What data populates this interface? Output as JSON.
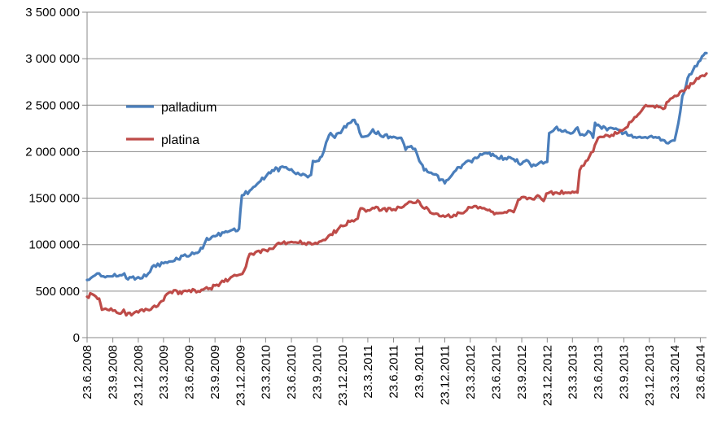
{
  "chart_data": {
    "type": "line",
    "title": "",
    "xlabel": "",
    "ylabel": "",
    "ylim": [
      0,
      3500000
    ],
    "grid": "horizontal",
    "legend_position": "upper-left",
    "y_ticks": [
      {
        "value": 0,
        "label": "0"
      },
      {
        "value": 500000,
        "label": "500 000"
      },
      {
        "value": 1000000,
        "label": "1000 000"
      },
      {
        "value": 1500000,
        "label": "1500 000"
      },
      {
        "value": 2000000,
        "label": "2 000 000"
      },
      {
        "value": 2500000,
        "label": "2 500 000"
      },
      {
        "value": 3000000,
        "label": "3 000 000"
      },
      {
        "value": 3500000,
        "label": "3 500 000"
      }
    ],
    "x_ticks": [
      "23.6.2008",
      "23.9.2008",
      "23.12.2008",
      "23.3.2009",
      "23.6.2009",
      "23.9.2009",
      "23.12.2009",
      "23.3.2010",
      "23.6.2010",
      "23.9.2010",
      "23.12.2010",
      "23.3.2011",
      "23.6.2011",
      "23.9.2011",
      "23.12.2011",
      "23.3.2012",
      "23.6.2012",
      "23.9.2012",
      "23.12.2012",
      "23.3.2013",
      "23.6.2013",
      "23.9.2013",
      "23.12.2013",
      "23.3.2014",
      "23.6.2014"
    ],
    "x_range": [
      "2008-06-23",
      "2014-07-15"
    ],
    "series": [
      {
        "name": "palladium",
        "color": "#4a7ebb",
        "points": [
          [
            "2008-06-23",
            620000
          ],
          [
            "2008-07-15",
            660000
          ],
          [
            "2008-08-05",
            690000
          ],
          [
            "2008-08-20",
            660000
          ],
          [
            "2008-09-23",
            660000
          ],
          [
            "2008-10-25",
            670000
          ],
          [
            "2008-11-03",
            690000
          ],
          [
            "2008-11-10",
            640000
          ],
          [
            "2008-12-23",
            650000
          ],
          [
            "2009-01-20",
            660000
          ],
          [
            "2009-02-10",
            760000
          ],
          [
            "2009-03-23",
            800000
          ],
          [
            "2009-04-25",
            820000
          ],
          [
            "2009-06-01",
            880000
          ],
          [
            "2009-07-10",
            900000
          ],
          [
            "2009-08-10",
            960000
          ],
          [
            "2009-08-25",
            1070000
          ],
          [
            "2009-09-23",
            1090000
          ],
          [
            "2009-10-25",
            1130000
          ],
          [
            "2009-11-25",
            1160000
          ],
          [
            "2009-12-18",
            1170000
          ],
          [
            "2009-12-28",
            1530000
          ],
          [
            "2010-01-25",
            1580000
          ],
          [
            "2010-02-20",
            1650000
          ],
          [
            "2010-03-23",
            1730000
          ],
          [
            "2010-04-15",
            1800000
          ],
          [
            "2010-04-28",
            1830000
          ],
          [
            "2010-05-08",
            1790000
          ],
          [
            "2010-05-22",
            1840000
          ],
          [
            "2010-06-23",
            1810000
          ],
          [
            "2010-07-10",
            1760000
          ],
          [
            "2010-08-15",
            1740000
          ],
          [
            "2010-09-01",
            1750000
          ],
          [
            "2010-09-08",
            1900000
          ],
          [
            "2010-09-23",
            1900000
          ],
          [
            "2010-10-10",
            1950000
          ],
          [
            "2010-10-25",
            2100000
          ],
          [
            "2010-11-10",
            2200000
          ],
          [
            "2010-11-25",
            2150000
          ],
          [
            "2010-12-23",
            2240000
          ],
          [
            "2011-01-10",
            2300000
          ],
          [
            "2011-01-28",
            2340000
          ],
          [
            "2011-02-15",
            2290000
          ],
          [
            "2011-03-01",
            2160000
          ],
          [
            "2011-03-23",
            2170000
          ],
          [
            "2011-04-10",
            2240000
          ],
          [
            "2011-05-05",
            2180000
          ],
          [
            "2011-06-23",
            2160000
          ],
          [
            "2011-07-20",
            2150000
          ],
          [
            "2011-08-05",
            2020000
          ],
          [
            "2011-08-25",
            2060000
          ],
          [
            "2011-09-08",
            2030000
          ],
          [
            "2011-09-23",
            1900000
          ],
          [
            "2011-10-10",
            1800000
          ],
          [
            "2011-11-10",
            1760000
          ],
          [
            "2011-12-10",
            1700000
          ],
          [
            "2011-12-23",
            1660000
          ],
          [
            "2012-01-10",
            1720000
          ],
          [
            "2012-02-01",
            1800000
          ],
          [
            "2012-03-01",
            1870000
          ],
          [
            "2012-03-23",
            1900000
          ],
          [
            "2012-04-15",
            1930000
          ],
          [
            "2012-05-10",
            1980000
          ],
          [
            "2012-05-25",
            1980000
          ],
          [
            "2012-06-23",
            1950000
          ],
          [
            "2012-07-25",
            1930000
          ],
          [
            "2012-08-25",
            1920000
          ],
          [
            "2012-09-23",
            1870000
          ],
          [
            "2012-10-10",
            1910000
          ],
          [
            "2012-10-28",
            1840000
          ],
          [
            "2012-11-25",
            1880000
          ],
          [
            "2012-12-23",
            1890000
          ],
          [
            "2012-12-30",
            2200000
          ],
          [
            "2013-01-20",
            2250000
          ],
          [
            "2013-02-25",
            2230000
          ],
          [
            "2013-03-23",
            2200000
          ],
          [
            "2013-04-10",
            2260000
          ],
          [
            "2013-04-20",
            2180000
          ],
          [
            "2013-05-25",
            2210000
          ],
          [
            "2013-06-05",
            2150000
          ],
          [
            "2013-06-12",
            2310000
          ],
          [
            "2013-06-23",
            2290000
          ],
          [
            "2013-07-25",
            2230000
          ],
          [
            "2013-08-25",
            2250000
          ],
          [
            "2013-09-23",
            2200000
          ],
          [
            "2013-10-20",
            2180000
          ],
          [
            "2013-11-25",
            2150000
          ],
          [
            "2013-12-23",
            2160000
          ],
          [
            "2014-01-20",
            2150000
          ],
          [
            "2014-02-15",
            2120000
          ],
          [
            "2014-03-01",
            2090000
          ],
          [
            "2014-03-23",
            2120000
          ],
          [
            "2014-04-05",
            2300000
          ],
          [
            "2014-04-20",
            2600000
          ],
          [
            "2014-05-15",
            2830000
          ],
          [
            "2014-06-23",
            2980000
          ],
          [
            "2014-07-05",
            3040000
          ],
          [
            "2014-07-15",
            3060000
          ]
        ]
      },
      {
        "name": "platina",
        "color": "#be4b48",
        "points": [
          [
            "2008-06-23",
            440000
          ],
          [
            "2008-07-10",
            470000
          ],
          [
            "2008-07-25",
            440000
          ],
          [
            "2008-08-05",
            420000
          ],
          [
            "2008-08-15",
            300000
          ],
          [
            "2008-09-23",
            290000
          ],
          [
            "2008-10-15",
            260000
          ],
          [
            "2008-11-01",
            300000
          ],
          [
            "2008-11-10",
            240000
          ],
          [
            "2008-12-23",
            270000
          ],
          [
            "2009-01-25",
            300000
          ],
          [
            "2009-02-25",
            330000
          ],
          [
            "2009-03-15",
            390000
          ],
          [
            "2009-03-23",
            400000
          ],
          [
            "2009-04-10",
            480000
          ],
          [
            "2009-05-05",
            510000
          ],
          [
            "2009-05-15",
            470000
          ],
          [
            "2009-06-01",
            500000
          ],
          [
            "2009-06-23",
            510000
          ],
          [
            "2009-07-25",
            500000
          ],
          [
            "2009-09-05",
            530000
          ],
          [
            "2009-09-23",
            560000
          ],
          [
            "2009-10-25",
            600000
          ],
          [
            "2009-11-25",
            660000
          ],
          [
            "2009-12-23",
            680000
          ],
          [
            "2010-01-05",
            720000
          ],
          [
            "2010-01-25",
            900000
          ],
          [
            "2010-02-15",
            920000
          ],
          [
            "2010-03-23",
            940000
          ],
          [
            "2010-04-25",
            980000
          ],
          [
            "2010-05-15",
            1010000
          ],
          [
            "2010-06-23",
            1030000
          ],
          [
            "2010-07-15",
            1020000
          ],
          [
            "2010-07-25",
            1040000
          ],
          [
            "2010-08-15",
            1000000
          ],
          [
            "2010-09-23",
            1010000
          ],
          [
            "2010-10-15",
            1050000
          ],
          [
            "2010-11-10",
            1110000
          ],
          [
            "2010-12-05",
            1160000
          ],
          [
            "2010-12-23",
            1200000
          ],
          [
            "2011-01-25",
            1260000
          ],
          [
            "2011-02-15",
            1280000
          ],
          [
            "2011-02-25",
            1390000
          ],
          [
            "2011-03-23",
            1370000
          ],
          [
            "2011-04-15",
            1390000
          ],
          [
            "2011-05-10",
            1370000
          ],
          [
            "2011-06-23",
            1380000
          ],
          [
            "2011-07-15",
            1400000
          ],
          [
            "2011-08-10",
            1440000
          ],
          [
            "2011-08-25",
            1460000
          ],
          [
            "2011-09-23",
            1460000
          ],
          [
            "2011-10-05",
            1400000
          ],
          [
            "2011-10-25",
            1380000
          ],
          [
            "2011-11-15",
            1330000
          ],
          [
            "2011-12-23",
            1300000
          ],
          [
            "2012-01-25",
            1320000
          ],
          [
            "2012-02-15",
            1340000
          ],
          [
            "2012-03-23",
            1400000
          ],
          [
            "2012-04-20",
            1390000
          ],
          [
            "2012-05-25",
            1370000
          ],
          [
            "2012-06-23",
            1340000
          ],
          [
            "2012-07-25",
            1350000
          ],
          [
            "2012-08-25",
            1350000
          ],
          [
            "2012-09-10",
            1480000
          ],
          [
            "2012-09-23",
            1510000
          ],
          [
            "2012-10-25",
            1500000
          ],
          [
            "2012-11-25",
            1520000
          ],
          [
            "2012-12-10",
            1470000
          ],
          [
            "2012-12-20",
            1550000
          ],
          [
            "2013-01-25",
            1560000
          ],
          [
            "2013-02-25",
            1560000
          ],
          [
            "2013-03-23",
            1570000
          ],
          [
            "2013-04-10",
            1560000
          ],
          [
            "2013-04-18",
            1800000
          ],
          [
            "2013-05-10",
            1900000
          ],
          [
            "2013-06-05",
            2000000
          ],
          [
            "2013-06-23",
            2150000
          ],
          [
            "2013-07-20",
            2180000
          ],
          [
            "2013-08-10",
            2180000
          ],
          [
            "2013-09-23",
            2240000
          ],
          [
            "2013-10-25",
            2340000
          ],
          [
            "2013-11-25",
            2440000
          ],
          [
            "2013-12-10",
            2500000
          ],
          [
            "2013-12-23",
            2490000
          ],
          [
            "2014-01-25",
            2480000
          ],
          [
            "2014-02-10",
            2460000
          ],
          [
            "2014-03-01",
            2540000
          ],
          [
            "2014-03-23",
            2600000
          ],
          [
            "2014-04-25",
            2650000
          ],
          [
            "2014-05-25",
            2730000
          ],
          [
            "2014-06-10",
            2790000
          ],
          [
            "2014-06-23",
            2810000
          ],
          [
            "2014-07-15",
            2840000
          ]
        ]
      }
    ]
  }
}
